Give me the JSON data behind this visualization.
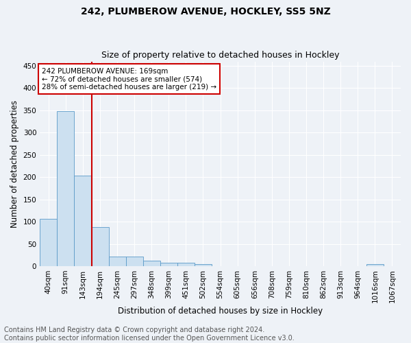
{
  "title1": "242, PLUMBEROW AVENUE, HOCKLEY, SS5 5NZ",
  "title2": "Size of property relative to detached houses in Hockley",
  "xlabel": "Distribution of detached houses by size in Hockley",
  "ylabel": "Number of detached properties",
  "footer1": "Contains HM Land Registry data © Crown copyright and database right 2024.",
  "footer2": "Contains public sector information licensed under the Open Government Licence v3.0.",
  "bin_labels": [
    "40sqm",
    "91sqm",
    "143sqm",
    "194sqm",
    "245sqm",
    "297sqm",
    "348sqm",
    "399sqm",
    "451sqm",
    "502sqm",
    "554sqm",
    "605sqm",
    "656sqm",
    "708sqm",
    "759sqm",
    "810sqm",
    "862sqm",
    "913sqm",
    "964sqm",
    "1016sqm",
    "1067sqm"
  ],
  "bar_values": [
    107,
    348,
    203,
    88,
    22,
    21,
    13,
    8,
    7,
    5,
    0,
    0,
    0,
    0,
    0,
    0,
    0,
    0,
    0,
    4,
    0
  ],
  "bar_color": "#cce0f0",
  "bar_edgecolor": "#5a9ac8",
  "vline_x": 2.54,
  "annotation_text": "242 PLUMBEROW AVENUE: 169sqm\n← 72% of detached houses are smaller (574)\n28% of semi-detached houses are larger (219) →",
  "annotation_box_color": "#ffffff",
  "annotation_box_edgecolor": "#cc0000",
  "vline_color": "#cc0000",
  "ylim": [
    0,
    460
  ],
  "yticks": [
    0,
    50,
    100,
    150,
    200,
    250,
    300,
    350,
    400,
    450
  ],
  "background_color": "#eef2f7",
  "grid_color": "#ffffff",
  "title1_fontsize": 10,
  "title2_fontsize": 9,
  "xlabel_fontsize": 8.5,
  "ylabel_fontsize": 8.5,
  "tick_fontsize": 7.5,
  "annotation_fontsize": 7.5,
  "footer_fontsize": 7.0
}
